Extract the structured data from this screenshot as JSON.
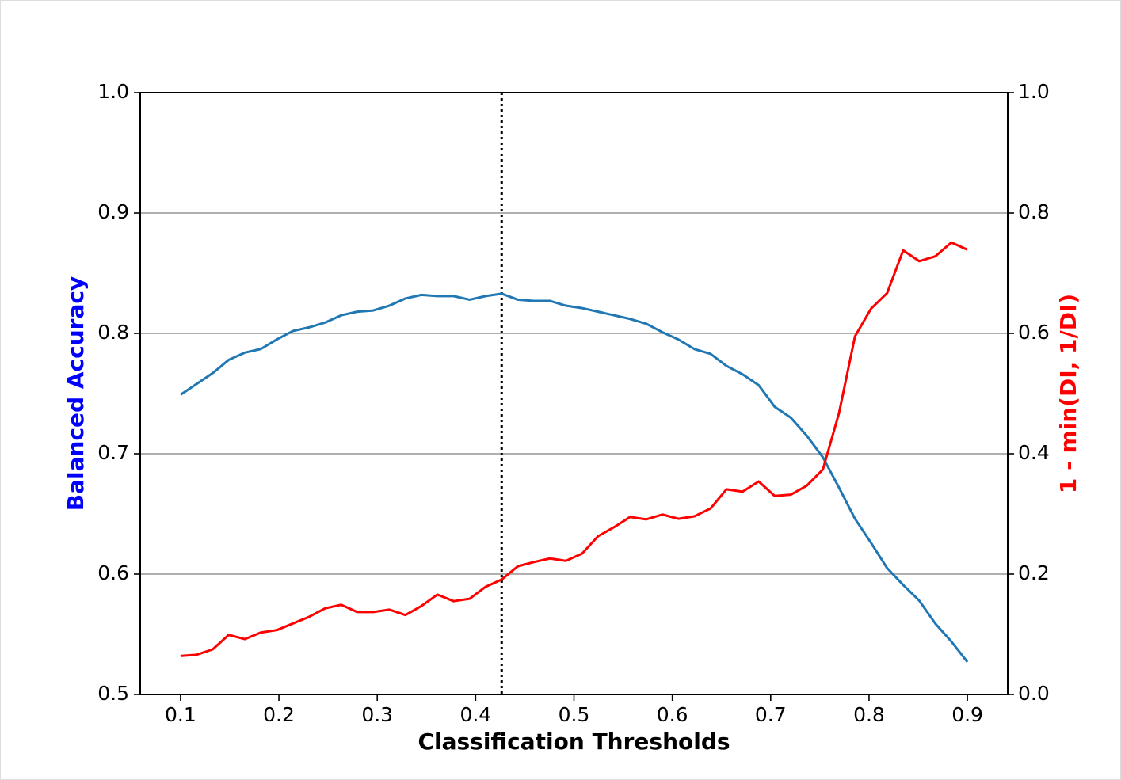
{
  "chart_data": {
    "type": "line",
    "xlabel": "Classification Thresholds",
    "ylabel": "Balanced Accuracy",
    "y2label": "1 - min(DI, 1/DI)",
    "ylabel_color": "#0000ff",
    "y2label_color": "#ff0000",
    "x": [
      0.1,
      0.1163,
      0.1327,
      0.149,
      0.1653,
      0.1816,
      0.198,
      0.2143,
      0.2306,
      0.2469,
      0.2633,
      0.2796,
      0.2959,
      0.3122,
      0.3286,
      0.3449,
      0.3612,
      0.3776,
      0.3939,
      0.4102,
      0.4265,
      0.4429,
      0.4592,
      0.4755,
      0.4918,
      0.5082,
      0.5245,
      0.5408,
      0.5571,
      0.5735,
      0.5898,
      0.6061,
      0.6224,
      0.6388,
      0.6551,
      0.6714,
      0.6878,
      0.7041,
      0.7204,
      0.7367,
      0.7531,
      0.7694,
      0.7857,
      0.802,
      0.8184,
      0.8347,
      0.851,
      0.8673,
      0.8837,
      0.9
    ],
    "series": [
      {
        "color": "#1f77b4",
        "axis": "y",
        "values": [
          0.749,
          0.758,
          0.767,
          0.778,
          0.784,
          0.787,
          0.795,
          0.802,
          0.805,
          0.809,
          0.815,
          0.818,
          0.819,
          0.823,
          0.829,
          0.832,
          0.831,
          0.831,
          0.828,
          0.831,
          0.833,
          0.828,
          0.827,
          0.827,
          0.823,
          0.821,
          0.818,
          0.815,
          0.812,
          0.808,
          0.801,
          0.795,
          0.787,
          0.783,
          0.773,
          0.766,
          0.757,
          0.739,
          0.73,
          0.715,
          0.697,
          0.672,
          0.646,
          0.626,
          0.605,
          0.591,
          0.578,
          0.559,
          0.544,
          0.527
        ]
      },
      {
        "color": "#ff0000",
        "axis": "y2",
        "values": [
          0.064,
          0.066,
          0.075,
          0.099,
          0.092,
          0.103,
          0.107,
          0.118,
          0.129,
          0.143,
          0.149,
          0.137,
          0.137,
          0.141,
          0.132,
          0.147,
          0.166,
          0.155,
          0.159,
          0.179,
          0.191,
          0.213,
          0.22,
          0.226,
          0.222,
          0.234,
          0.263,
          0.278,
          0.295,
          0.291,
          0.299,
          0.292,
          0.296,
          0.309,
          0.341,
          0.337,
          0.354,
          0.33,
          0.332,
          0.347,
          0.374,
          0.467,
          0.595,
          0.641,
          0.667,
          0.738,
          0.72,
          0.728,
          0.751,
          0.739
        ]
      }
    ],
    "vlines": [
      0.4265
    ],
    "xlim": [
      0.059,
      0.941
    ],
    "xticks": [
      0.1,
      0.2,
      0.3,
      0.4,
      0.5,
      0.6,
      0.7,
      0.8,
      0.9
    ],
    "ylim": [
      0.5,
      1.0
    ],
    "yticks": [
      0.5,
      0.6,
      0.7,
      0.8,
      0.9,
      {
        "value": 1.0,
        "label": "1.0"
      }
    ],
    "y2lim": [
      0,
      1.0
    ],
    "y2ticks": [
      {
        "value": 0,
        "label": "0.0"
      },
      0.2,
      0.4,
      0.6,
      0.8,
      {
        "value": 1.0,
        "label": "1.0"
      }
    ],
    "grid": true
  }
}
